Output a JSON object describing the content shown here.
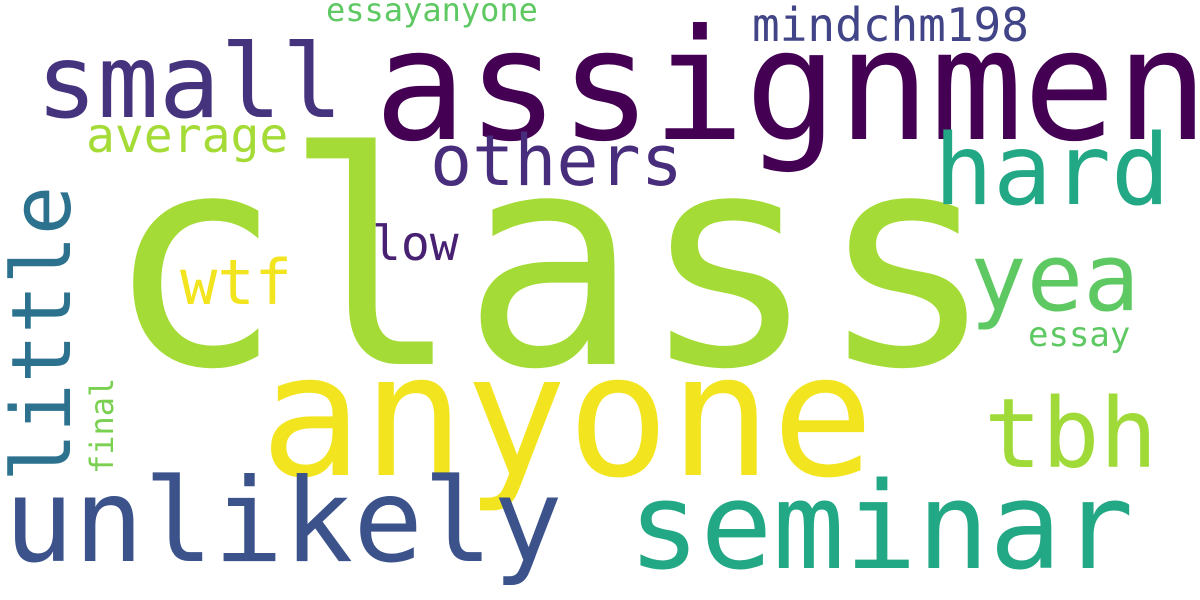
{
  "words": [
    {
      "id": "class",
      "text": "class",
      "color": "#a5db36"
    },
    {
      "id": "assignment",
      "text": "assignment",
      "color": "#440154"
    },
    {
      "id": "anyone",
      "text": "anyone",
      "color": "#f2e51f"
    },
    {
      "id": "seminar",
      "text": "seminar",
      "color": "#22a884"
    },
    {
      "id": "unlikely",
      "text": "unlikely",
      "color": "#3b528b"
    },
    {
      "id": "small",
      "text": "small",
      "color": "#46337e"
    },
    {
      "id": "little",
      "text": "little",
      "color": "#2c728e",
      "vertical": true
    },
    {
      "id": "hard",
      "text": "hard",
      "color": "#22a884"
    },
    {
      "id": "yea",
      "text": "yea",
      "color": "#5ec962"
    },
    {
      "id": "tbh",
      "text": "tbh",
      "color": "#a0da39"
    },
    {
      "id": "others",
      "text": "others",
      "color": "#472d7b"
    },
    {
      "id": "wtf",
      "text": "wtf",
      "color": "#f2e51f"
    },
    {
      "id": "mindchm198",
      "text": "mindchm198",
      "color": "#414487"
    },
    {
      "id": "average",
      "text": "average",
      "color": "#a5db36"
    },
    {
      "id": "low",
      "text": "low",
      "color": "#482173"
    },
    {
      "id": "essay",
      "text": "essay",
      "color": "#5ec962"
    },
    {
      "id": "essayanyone",
      "text": "essayanyone",
      "color": "#5ec962"
    },
    {
      "id": "final",
      "text": "final",
      "color": "#7ad151",
      "vertical": true
    }
  ]
}
